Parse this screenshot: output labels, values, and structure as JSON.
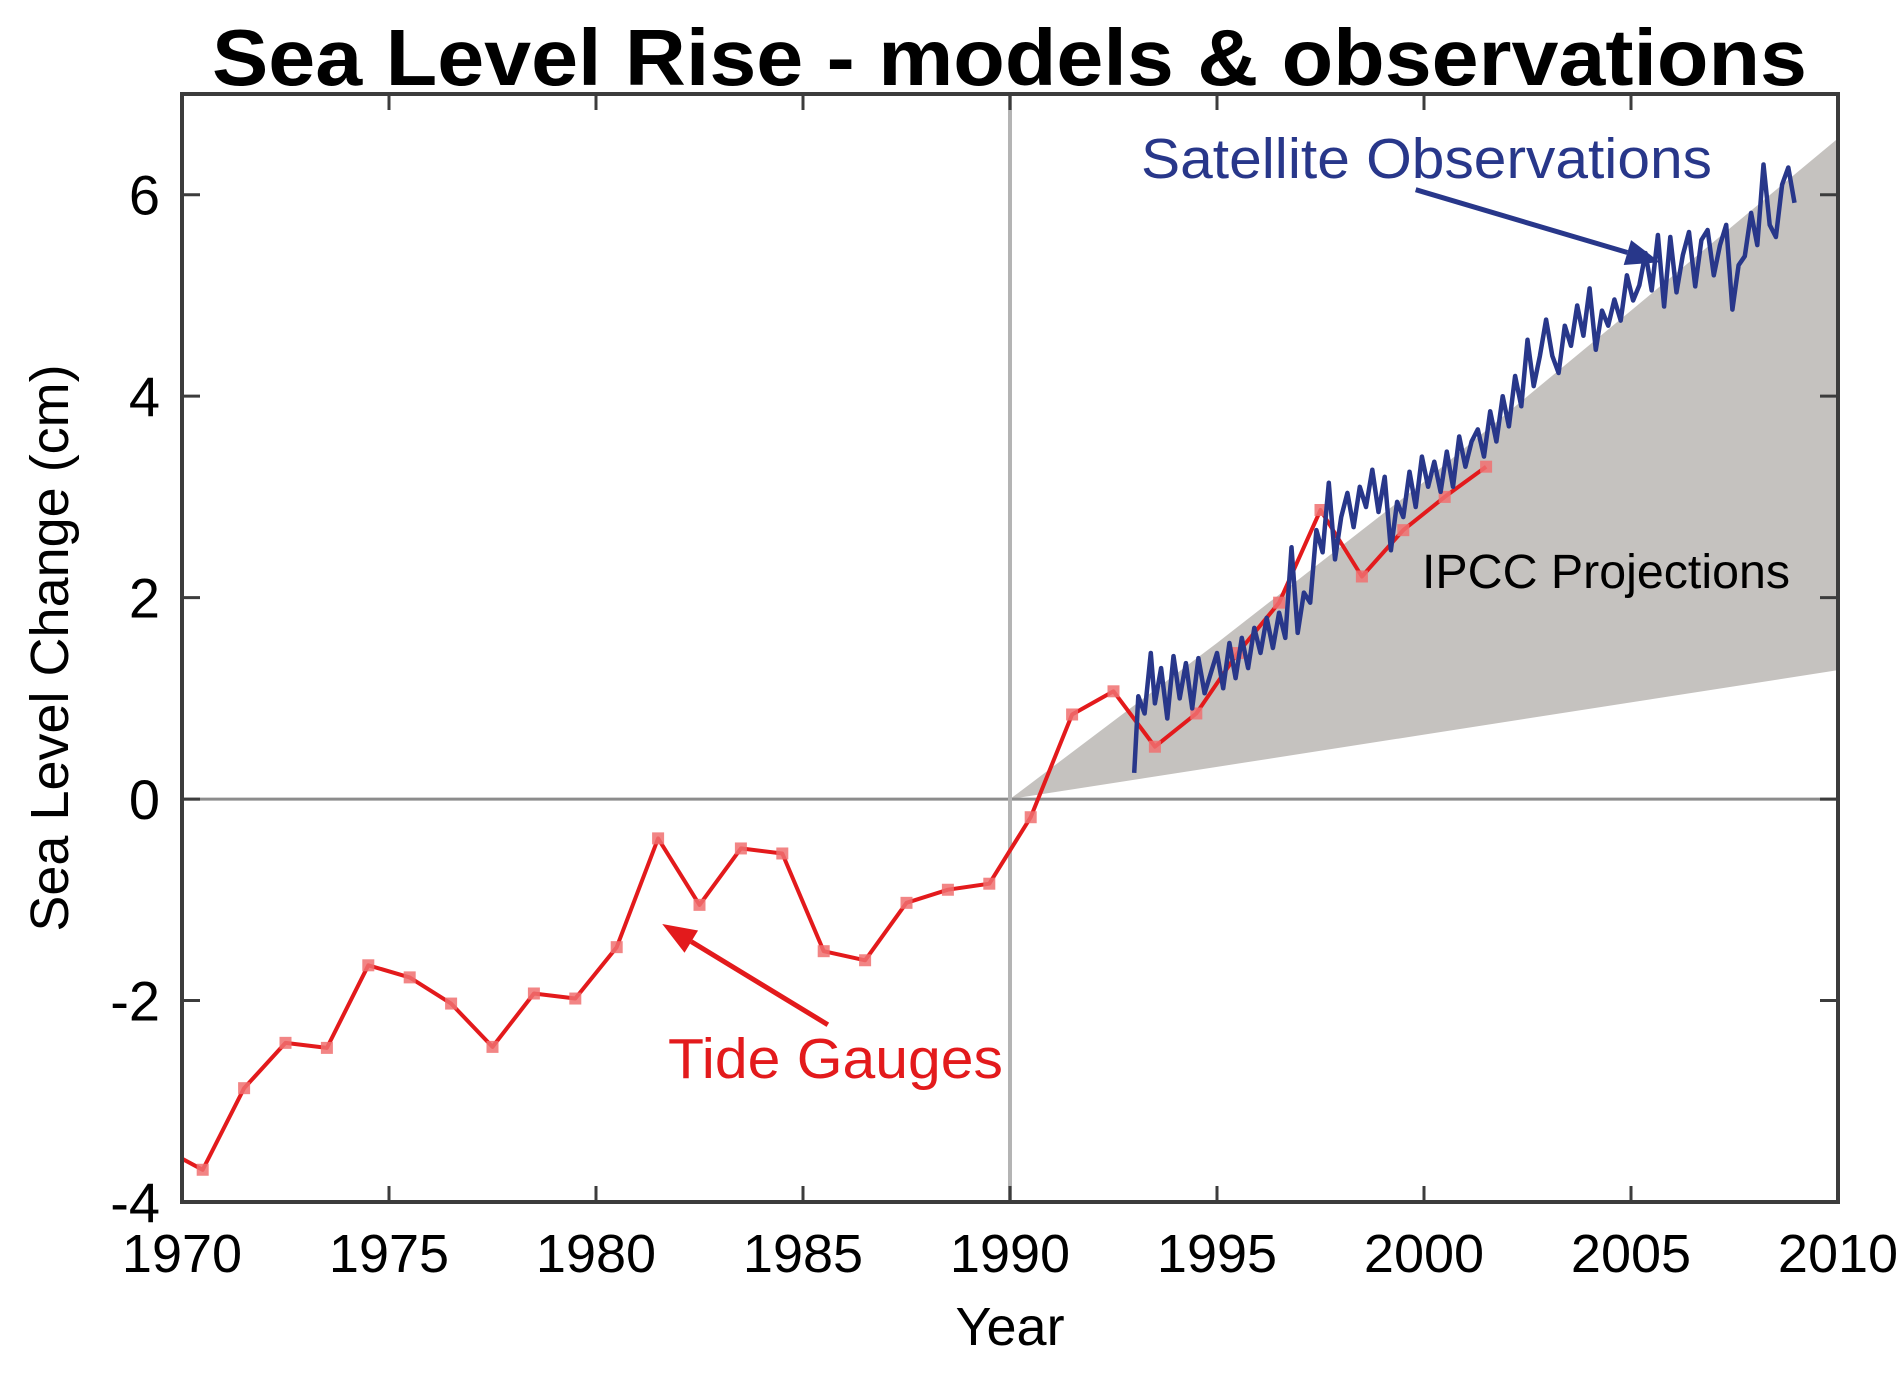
{
  "chart_data": {
    "type": "line",
    "title": "Sea Level Rise - models & observations",
    "xlabel": "Year",
    "ylabel": "Sea Level Change (cm)",
    "xlim": [
      1970,
      2010
    ],
    "ylim": [
      -4,
      7
    ],
    "x_ticks": [
      1970,
      1975,
      1980,
      1985,
      1990,
      1995,
      2000,
      2005,
      2010
    ],
    "x_tick_labels": [
      "1970",
      "1975",
      "1980",
      "1985",
      "1990",
      "1995",
      "2000",
      "2005",
      "2010"
    ],
    "y_ticks": [
      -4,
      -2,
      0,
      2,
      4,
      6
    ],
    "y_tick_labels": [
      "-4",
      "-2",
      "0",
      "2",
      "4",
      "6"
    ],
    "grid": false,
    "reference_lines": [
      {
        "orientation": "horizontal",
        "value": 0,
        "color": "#8c8c8c"
      },
      {
        "orientation": "vertical",
        "value": 1990,
        "color": "#b4b4b4"
      }
    ],
    "series": [
      {
        "name": "IPCC Projections",
        "kind": "band",
        "color": "#c5c2bf",
        "x": [
          1990,
          1995,
          2000,
          2005,
          2010
        ],
        "lower": [
          0.0,
          0.32,
          0.64,
          0.96,
          1.28
        ],
        "upper": [
          0.0,
          1.55,
          3.15,
          4.85,
          6.56
        ]
      },
      {
        "name": "Tide Gauges",
        "kind": "line",
        "color": "#e31a1c",
        "marker_color": "#f07070",
        "x": [
          1970.0,
          1970.5,
          1971.5,
          1972.5,
          1973.5,
          1974.5,
          1975.5,
          1976.5,
          1977.5,
          1978.5,
          1979.5,
          1980.5,
          1981.5,
          1982.5,
          1983.5,
          1984.5,
          1985.5,
          1986.5,
          1987.5,
          1988.5,
          1989.5,
          1990.5,
          1991.5,
          1992.5,
          1993.5,
          1994.5,
          1995.5,
          1996.5,
          1997.5,
          1998.5,
          1999.5,
          2000.5,
          2001.5
        ],
        "y": [
          -3.57,
          -3.68,
          -2.87,
          -2.42,
          -2.47,
          -1.65,
          -1.77,
          -2.03,
          -2.46,
          -1.93,
          -1.98,
          -1.47,
          -0.39,
          -1.05,
          -0.49,
          -0.54,
          -1.51,
          -1.6,
          -1.03,
          -0.9,
          -0.84,
          -0.18,
          0.84,
          1.07,
          0.52,
          0.85,
          1.45,
          1.95,
          2.87,
          2.21,
          2.67,
          3.0,
          3.3
        ]
      },
      {
        "name": "Satellite Observations",
        "kind": "line",
        "color": "#28378a",
        "x": [
          1993.0,
          1993.1,
          1993.25,
          1993.4,
          1993.5,
          1993.65,
          1993.8,
          1993.95,
          1994.1,
          1994.25,
          1994.4,
          1994.55,
          1994.7,
          1994.85,
          1995.0,
          1995.15,
          1995.3,
          1995.45,
          1995.6,
          1995.75,
          1995.9,
          1996.05,
          1996.2,
          1996.35,
          1996.5,
          1996.65,
          1996.8,
          1996.95,
          1997.1,
          1997.25,
          1997.4,
          1997.55,
          1997.7,
          1997.85,
          1998.0,
          1998.15,
          1998.3,
          1998.45,
          1998.6,
          1998.75,
          1998.9,
          1999.05,
          1999.2,
          1999.35,
          1999.5,
          1999.65,
          1999.8,
          1999.95,
          2000.1,
          2000.25,
          2000.4,
          2000.55,
          2000.7,
          2000.85,
          2001.0,
          2001.15,
          2001.3,
          2001.45,
          2001.6,
          2001.75,
          2001.9,
          2002.05,
          2002.2,
          2002.35,
          2002.5,
          2002.65,
          2002.8,
          2002.95,
          2003.1,
          2003.25,
          2003.4,
          2003.55,
          2003.7,
          2003.85,
          2004.0,
          2004.15,
          2004.3,
          2004.45,
          2004.6,
          2004.75,
          2004.9,
          2005.05,
          2005.2,
          2005.35,
          2005.5,
          2005.65,
          2005.8,
          2005.95,
          2006.1,
          2006.25,
          2006.4,
          2006.55,
          2006.7,
          2006.85,
          2007.0,
          2007.15,
          2007.3,
          2007.45,
          2007.6,
          2007.75,
          2007.9,
          2008.05,
          2008.2,
          2008.35,
          2008.5,
          2008.65,
          2008.8,
          2008.95
        ],
        "y": [
          0.26,
          1.02,
          0.85,
          1.45,
          0.95,
          1.3,
          0.8,
          1.42,
          1.0,
          1.35,
          0.9,
          1.4,
          1.05,
          1.25,
          1.45,
          1.1,
          1.55,
          1.2,
          1.6,
          1.3,
          1.7,
          1.45,
          1.8,
          1.5,
          1.85,
          1.6,
          2.5,
          1.65,
          2.05,
          1.95,
          2.67,
          2.45,
          3.14,
          2.38,
          2.8,
          3.04,
          2.7,
          3.1,
          2.9,
          3.27,
          2.85,
          3.2,
          2.47,
          2.95,
          2.8,
          3.25,
          2.9,
          3.4,
          3.1,
          3.35,
          3.05,
          3.45,
          3.1,
          3.6,
          3.3,
          3.55,
          3.67,
          3.4,
          3.85,
          3.55,
          4.0,
          3.7,
          4.2,
          3.9,
          4.56,
          4.1,
          4.4,
          4.76,
          4.4,
          4.23,
          4.7,
          4.5,
          4.9,
          4.6,
          5.07,
          4.46,
          4.85,
          4.7,
          4.96,
          4.75,
          5.2,
          4.95,
          5.1,
          5.42,
          5.05,
          5.6,
          4.89,
          5.58,
          5.03,
          5.4,
          5.63,
          5.09,
          5.55,
          5.65,
          5.2,
          5.5,
          5.7,
          4.86,
          5.3,
          5.39,
          5.82,
          5.5,
          6.3,
          5.7,
          5.58,
          6.1,
          6.27,
          5.92
        ]
      }
    ],
    "annotations": [
      {
        "text": "Satellite Observations",
        "color": "#28378a",
        "arrow_from": [
          1999.8,
          6.05
        ],
        "arrow_to": [
          2005.7,
          5.33
        ]
      },
      {
        "text": "Tide Gauges",
        "color": "#e31a1c",
        "arrow_from": [
          1985.6,
          -2.24
        ],
        "arrow_to": [
          1981.6,
          -1.24
        ]
      },
      {
        "text": "IPCC Projections",
        "color": "#000000"
      }
    ],
    "legend": "none"
  }
}
